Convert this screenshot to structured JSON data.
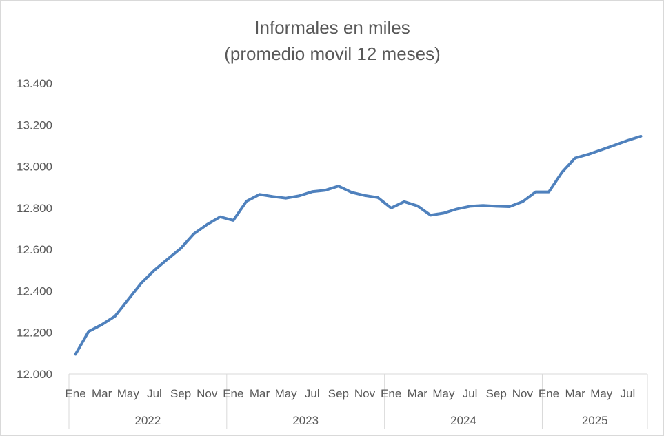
{
  "chart_data": {
    "type": "line",
    "title": "Informales en miles",
    "subtitle": "(promedio movil 12 meses)",
    "xlabel": "",
    "ylabel": "",
    "ylim": [
      12000,
      13400
    ],
    "y_ticks": [
      "12.000",
      "12.200",
      "12.400",
      "12.600",
      "12.800",
      "13.000",
      "13.200",
      "13.400"
    ],
    "y_tick_values": [
      12000,
      12200,
      12400,
      12600,
      12800,
      13000,
      13200,
      13400
    ],
    "grid": false,
    "legend": "none",
    "colors": {
      "series": "#4f81bd",
      "axis": "#d9d9d9",
      "text": "#595959"
    },
    "years": [
      {
        "label": "2022",
        "months": 12
      },
      {
        "label": "2023",
        "months": 12
      },
      {
        "label": "2024",
        "months": 12
      },
      {
        "label": "2025",
        "months": 8
      }
    ],
    "month_tick_labels": [
      "Ene",
      "Mar",
      "May",
      "Jul",
      "Sep",
      "Nov",
      "Ene",
      "Mar",
      "May",
      "Jul",
      "Sep",
      "Nov",
      "Ene",
      "Mar",
      "May",
      "Jul",
      "Sep",
      "Nov",
      "Ene",
      "Mar",
      "May",
      "Jul"
    ],
    "x": [
      "2022-01",
      "2022-02",
      "2022-03",
      "2022-04",
      "2022-05",
      "2022-06",
      "2022-07",
      "2022-08",
      "2022-09",
      "2022-10",
      "2022-11",
      "2022-12",
      "2023-01",
      "2023-02",
      "2023-03",
      "2023-04",
      "2023-05",
      "2023-06",
      "2023-07",
      "2023-08",
      "2023-09",
      "2023-10",
      "2023-11",
      "2023-12",
      "2024-01",
      "2024-02",
      "2024-03",
      "2024-04",
      "2024-05",
      "2024-06",
      "2024-07",
      "2024-08",
      "2024-09",
      "2024-10",
      "2024-11",
      "2024-12",
      "2025-01",
      "2025-02",
      "2025-03",
      "2025-04",
      "2025-05",
      "2025-06",
      "2025-07",
      "2025-08"
    ],
    "series": [
      {
        "values": [
          12095,
          12205,
          12238,
          12278,
          12358,
          12438,
          12500,
          12553,
          12605,
          12675,
          12720,
          12757,
          12740,
          12832,
          12865,
          12855,
          12847,
          12858,
          12878,
          12885,
          12905,
          12875,
          12860,
          12850,
          12800,
          12830,
          12810,
          12765,
          12775,
          12795,
          12808,
          12812,
          12808,
          12806,
          12830,
          12877,
          12877,
          12972,
          13040,
          13058,
          13080,
          13102,
          13125,
          13145
        ]
      }
    ]
  }
}
